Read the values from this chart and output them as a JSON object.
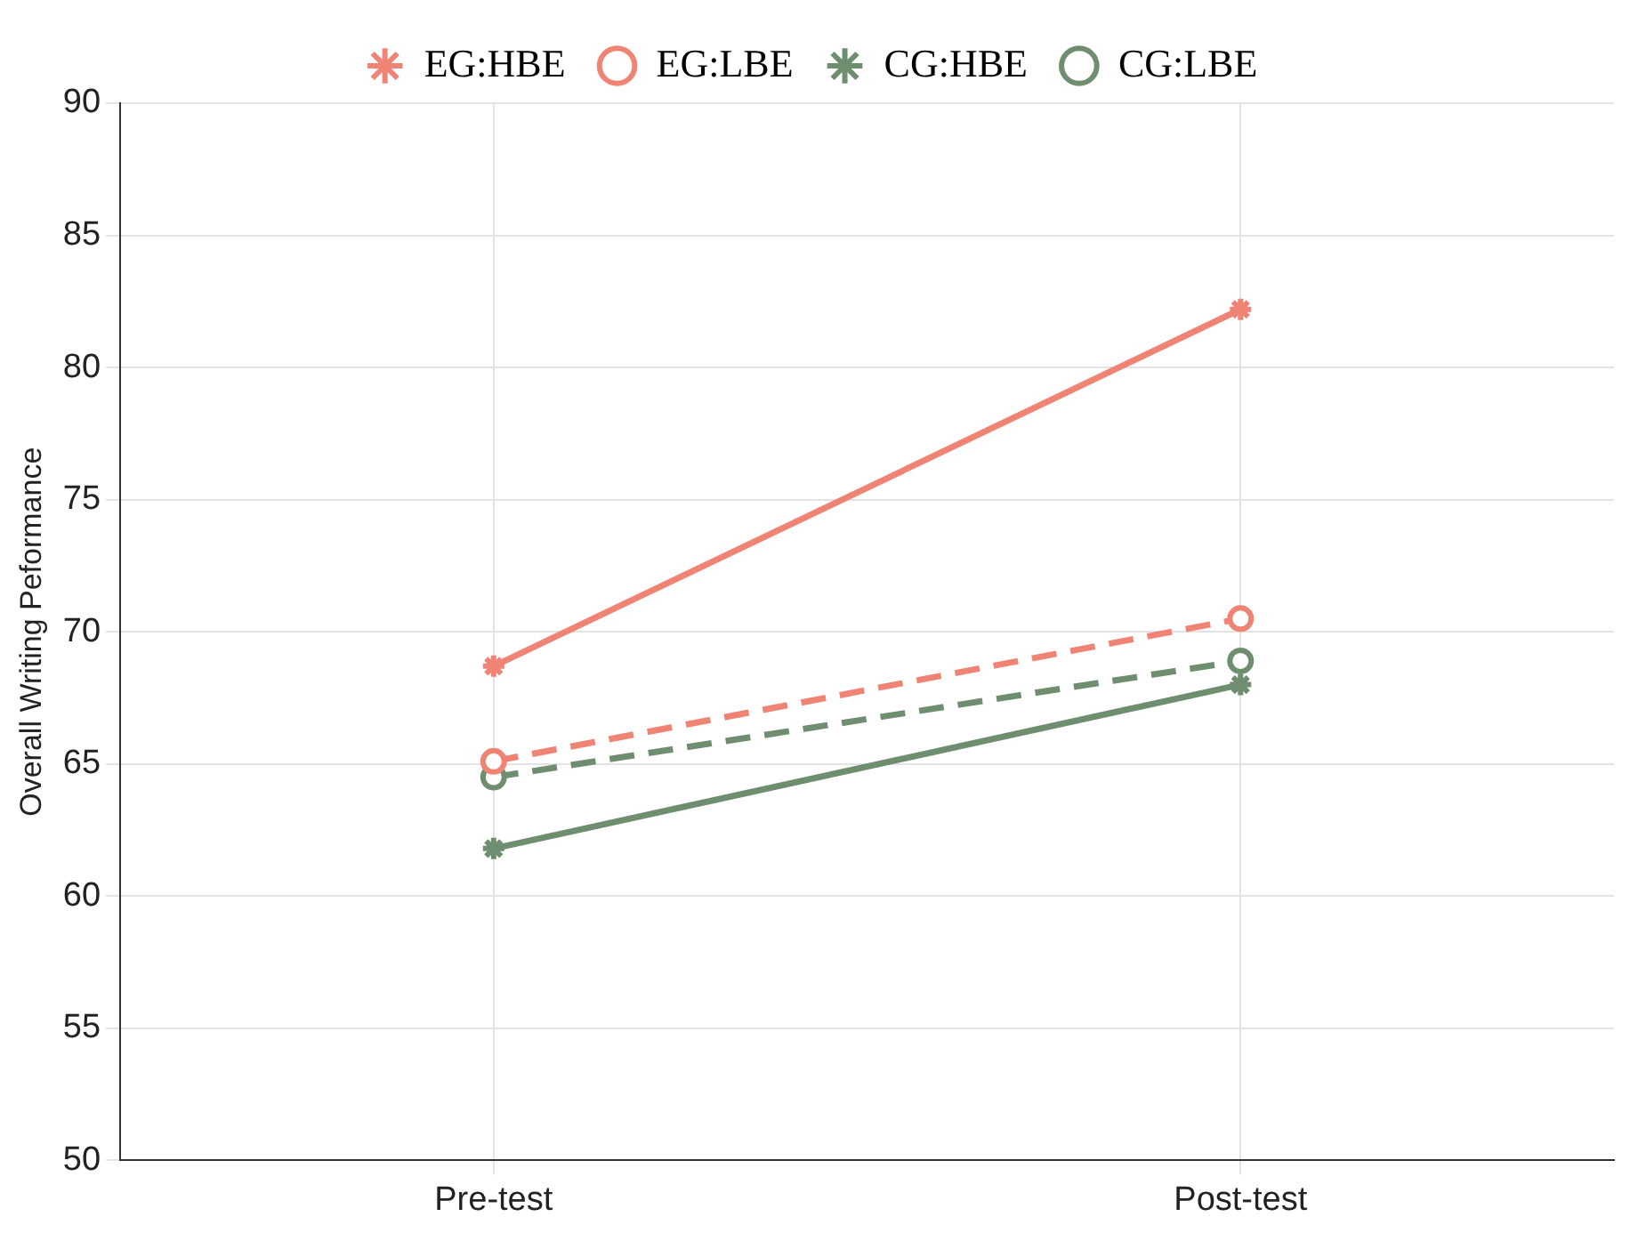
{
  "chart_data": {
    "type": "line",
    "ylabel": "Overall Writing Peformance",
    "categories": [
      "Pre-test",
      "Post-test"
    ],
    "series": [
      {
        "name": "EG:HBE",
        "color": "#f08474",
        "values": [
          68.7,
          82.2
        ],
        "marker": "cross",
        "line_style": "solid"
      },
      {
        "name": "EG:LBE",
        "color": "#f08474",
        "values": [
          65.1,
          70.5
        ],
        "marker": "circle",
        "line_style": "dashed"
      },
      {
        "name": "CG:HBE",
        "color": "#6f8e6f",
        "values": [
          61.8,
          68.0
        ],
        "marker": "cross",
        "line_style": "solid"
      },
      {
        "name": "CG:LBE",
        "color": "#6f8e6f",
        "values": [
          64.5,
          68.9
        ],
        "marker": "circle",
        "line_style": "dashed"
      }
    ],
    "ylim": [
      50,
      90
    ],
    "yticks": [
      50,
      55,
      60,
      65,
      70,
      75,
      80,
      85,
      90
    ],
    "grid": true,
    "legend": "top"
  }
}
